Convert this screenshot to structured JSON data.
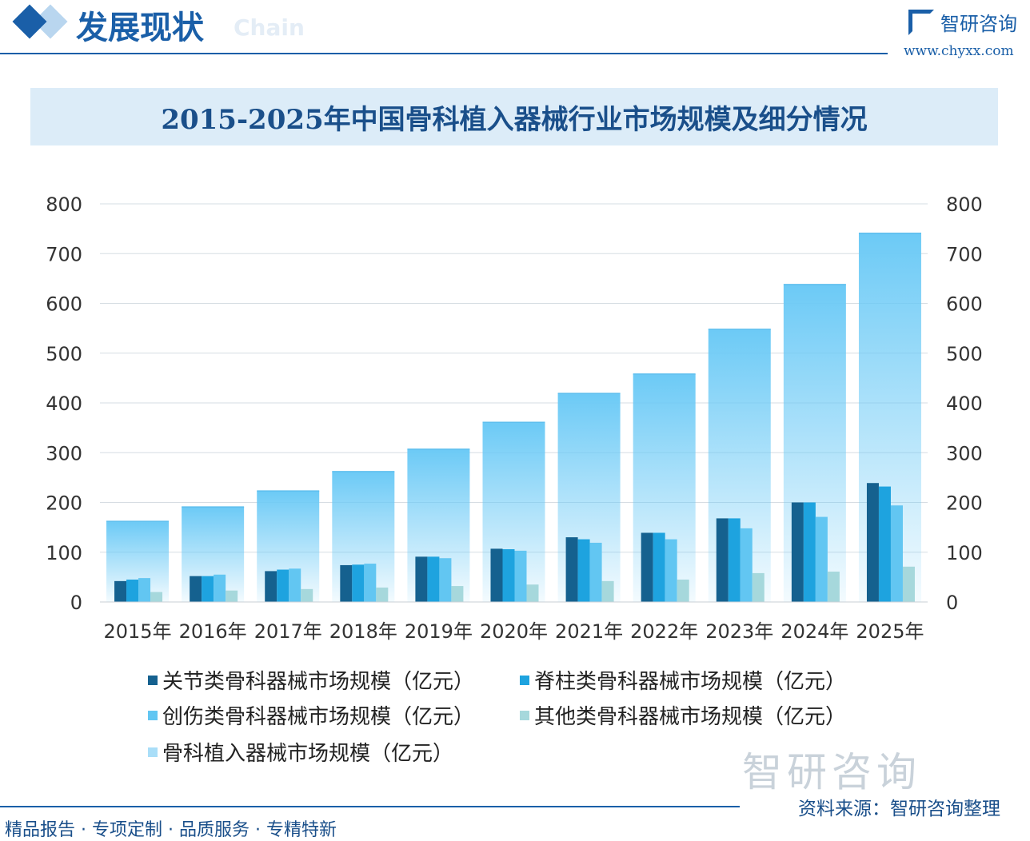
{
  "header": {
    "section_title": "发展现状",
    "ghost_text": "Chain",
    "logo_text": "智研咨询",
    "logo_url": "www.chyxx.com"
  },
  "footer": {
    "tagline": "精品报告 · 专项定制 · 品质服务 · 专精特新",
    "source": "资料来源：智研咨询整理",
    "watermark": "智研咨询"
  },
  "chart_data": {
    "type": "bar",
    "title": "2015-2025年中国骨科植入器械行业市场规模及细分情况",
    "categories": [
      "2015年",
      "2016年",
      "2017年",
      "2018年",
      "2019年",
      "2020年",
      "2021年",
      "2022年",
      "2023年",
      "2024年",
      "2025年"
    ],
    "ylim": [
      0,
      800
    ],
    "yticks": [
      0,
      100,
      200,
      300,
      400,
      500,
      600,
      700,
      800
    ],
    "right_axis_ticks": [
      0,
      100,
      200,
      300,
      400,
      500,
      600,
      700,
      800
    ],
    "grid": true,
    "legend_position": "bottom",
    "series": [
      {
        "name": "关节类骨科器械市场规模（亿元）",
        "color": "#15618f",
        "values": [
          42,
          52,
          62,
          74,
          91,
          107,
          130,
          139,
          168,
          200,
          239
        ]
      },
      {
        "name": "脊柱类骨科器械市场规模（亿元）",
        "color": "#1ea3df",
        "values": [
          45,
          52,
          65,
          75,
          91,
          106,
          126,
          139,
          168,
          200,
          232
        ]
      },
      {
        "name": "创伤类骨科器械市场规模（亿元）",
        "color": "#62c6f2",
        "values": [
          48,
          55,
          67,
          77,
          88,
          103,
          119,
          126,
          148,
          171,
          194
        ]
      },
      {
        "name": "其他类骨科器械市场规模（亿元）",
        "color": "#a6d8dc",
        "values": [
          20,
          23,
          26,
          29,
          32,
          35,
          42,
          45,
          58,
          61,
          71
        ]
      },
      {
        "name": "骨科植入器械市场规模（亿元）",
        "color": "#6ccaf6",
        "values": [
          162,
          191,
          223,
          262,
          307,
          361,
          419,
          458,
          548,
          638,
          741
        ]
      }
    ]
  }
}
